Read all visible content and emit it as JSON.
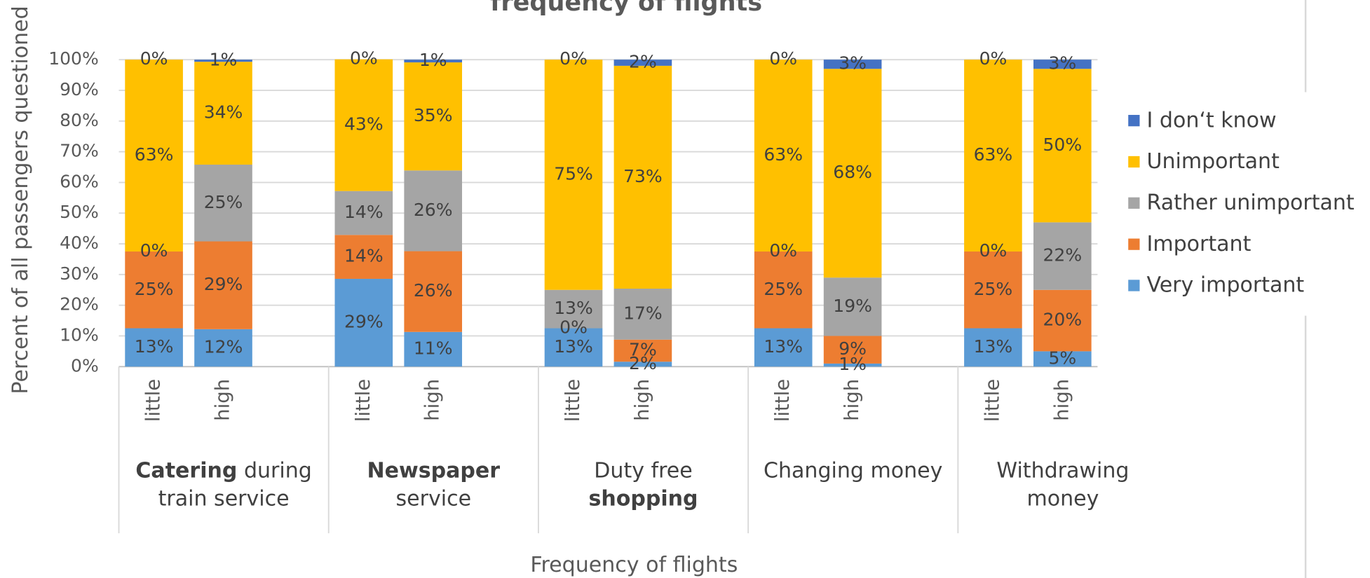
{
  "chart_data": {
    "type": "stacked_bar",
    "title": "frequency of flights",
    "y_label": "Percent of all passengers questioned",
    "x_label": "Frequency of flights",
    "categories": [
      "little",
      "high",
      "little",
      "high",
      "little",
      "high",
      "little",
      "high",
      "little",
      "high"
    ],
    "groups": [
      {
        "lines": [
          [
            {
              "text": "Catering",
              "bold": true
            },
            {
              "text": " during"
            }
          ],
          [
            {
              "text": "train service"
            }
          ]
        ]
      },
      {
        "lines": [
          [
            {
              "text": "Newspaper",
              "bold": true
            }
          ],
          [
            {
              "text": "service"
            }
          ]
        ]
      },
      {
        "lines": [
          [
            {
              "text": "Duty free"
            }
          ],
          [
            {
              "text": "shopping",
              "bold": true
            }
          ]
        ]
      },
      {
        "lines": [
          [
            {
              "text": "Changing money"
            }
          ]
        ]
      },
      {
        "lines": [
          [
            {
              "text": "Withdrawing"
            }
          ],
          [
            {
              "text": "money"
            }
          ]
        ]
      }
    ],
    "series": [
      {
        "name": "Very important",
        "color": "#5b9bd5",
        "values": [
          12.5,
          12.2,
          28.6,
          11.3,
          12.5,
          1.6,
          12.5,
          1,
          12.5,
          5
        ],
        "value_labels": [
          "13%",
          "12%",
          "29%",
          "11%",
          "13%",
          "2%",
          "13%",
          "1%",
          "13%",
          "5%"
        ]
      },
      {
        "name": "Important",
        "color": "#ed7d31",
        "values": [
          25,
          28.6,
          14.3,
          26.3,
          0,
          7.2,
          25,
          9,
          25,
          20
        ],
        "value_labels": [
          "25%",
          "29%",
          "14%",
          "26%",
          "0%",
          "7%",
          "25%",
          "9%",
          "25%",
          "20%"
        ]
      },
      {
        "name": "Rather unimportant",
        "color": "#a5a5a5",
        "values": [
          0,
          25,
          14.3,
          26.3,
          12.5,
          16.6,
          0,
          19,
          0,
          22
        ],
        "value_labels": [
          "0%",
          "25%",
          "14%",
          "26%",
          "13%",
          "17%",
          "0%",
          "19%",
          "0%",
          "22%"
        ]
      },
      {
        "name": "Unimportant",
        "color": "#ffc000",
        "values": [
          62.5,
          33.5,
          42.9,
          35.2,
          75,
          72.6,
          62.5,
          68,
          62.5,
          50
        ],
        "value_labels": [
          "63%",
          "34%",
          "43%",
          "35%",
          "75%",
          "73%",
          "63%",
          "68%",
          "63%",
          "50%"
        ]
      },
      {
        "name": "I don‘t know",
        "color": "#4472c4",
        "values": [
          0,
          0.7,
          0,
          0.9,
          0,
          2,
          0,
          3,
          0,
          3
        ],
        "value_labels": [
          "0%",
          "1%",
          "0%",
          "1%",
          "0%",
          "2%",
          "0%",
          "3%",
          "0%",
          "3%"
        ]
      }
    ],
    "ylim": [
      0,
      100
    ],
    "yticks": [
      {
        "value": 0,
        "label": "0%"
      },
      {
        "value": 10,
        "label": "10%"
      },
      {
        "value": 20,
        "label": "20%"
      },
      {
        "value": 30,
        "label": "30%"
      },
      {
        "value": 40,
        "label": "40%"
      },
      {
        "value": 50,
        "label": "50%"
      },
      {
        "value": 60,
        "label": "60%"
      },
      {
        "value": 70,
        "label": "70%"
      },
      {
        "value": 80,
        "label": "80%"
      },
      {
        "value": 90,
        "label": "90%"
      },
      {
        "value": 100,
        "label": "100%"
      }
    ],
    "grid": true,
    "legend": "right"
  }
}
